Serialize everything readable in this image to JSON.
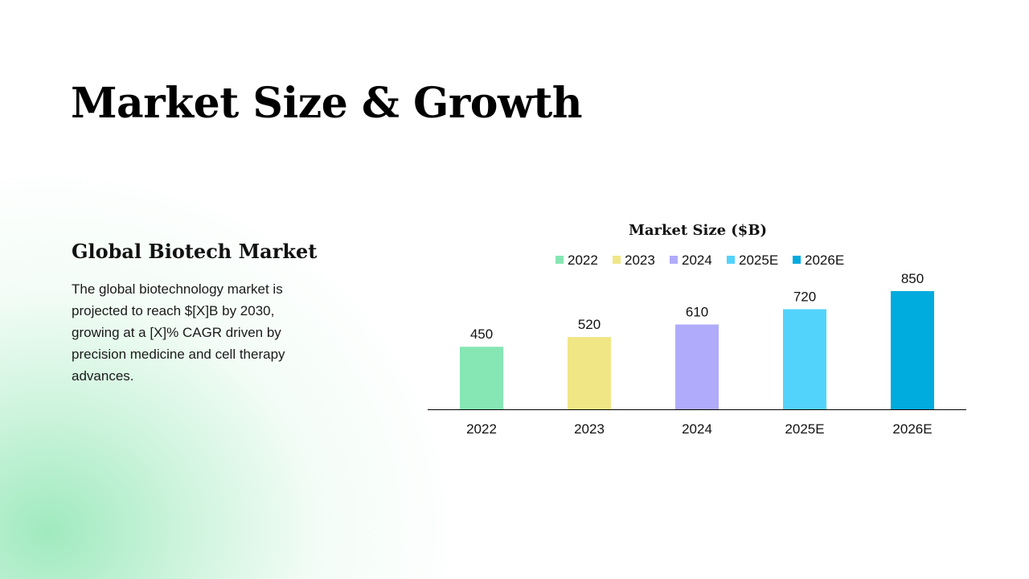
{
  "slide": {
    "title": "Market Size & Growth"
  },
  "section": {
    "heading": "Global Biotech Market",
    "body": "The global biotechnology market is projected to reach $[X]B by 2030, growing at a [X]% CAGR driven by precision medicine and cell therapy advances."
  },
  "chart_data": {
    "type": "bar",
    "title": "Market Size ($B)",
    "categories": [
      "2022",
      "2023",
      "2024",
      "2025E",
      "2026E"
    ],
    "values": [
      450,
      520,
      610,
      720,
      850
    ],
    "colors": [
      "#86E6B4",
      "#F0E685",
      "#B0ACFB",
      "#52D3FB",
      "#00ABDE"
    ],
    "legend": [
      "2022",
      "2023",
      "2024",
      "2025E",
      "2026E"
    ],
    "legend_position": "top",
    "data_labels": true,
    "xlabel": "",
    "ylabel": "",
    "ylim": [
      0,
      850
    ],
    "grid": false
  },
  "colors": {
    "background": "#FFFFFF",
    "accent_glow": "#A6EBC4",
    "text": "#000000"
  }
}
